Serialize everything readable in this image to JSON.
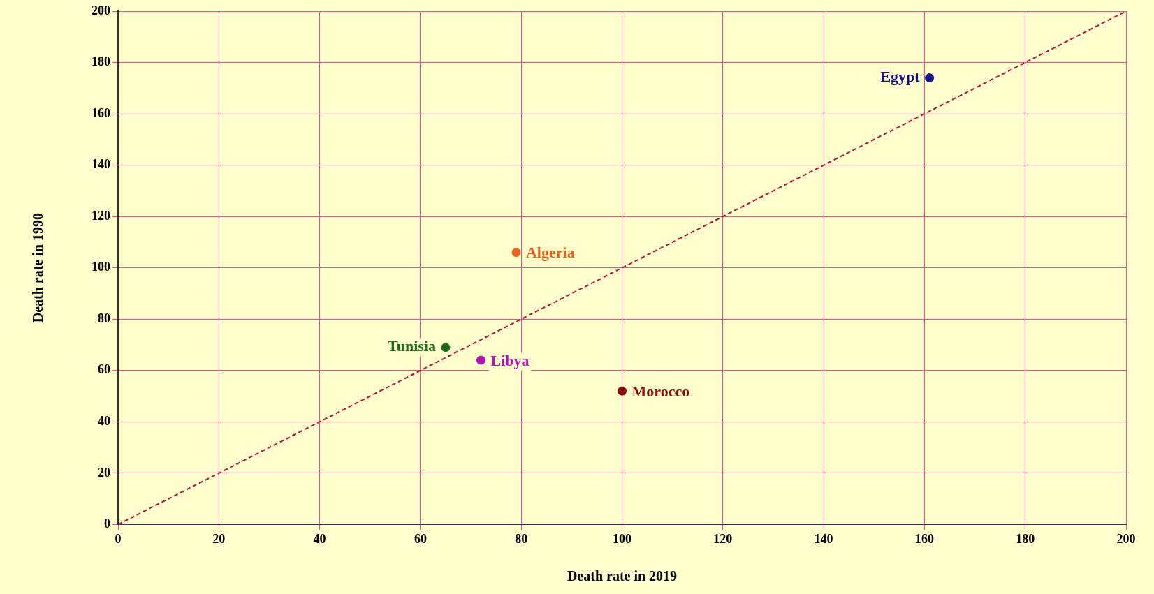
{
  "chart_data": {
    "type": "scatter",
    "xlabel": "Death rate in 2019",
    "ylabel": "Death rate in 1990",
    "xlim": [
      0,
      200
    ],
    "ylim": [
      0,
      200
    ],
    "xticks": [
      0,
      20,
      40,
      60,
      80,
      100,
      120,
      140,
      160,
      180,
      200
    ],
    "yticks": [
      0,
      20,
      40,
      60,
      80,
      100,
      120,
      140,
      160,
      180,
      200
    ],
    "grid": true,
    "legend": false,
    "marker": "circle",
    "series": [
      {
        "name": "Egypt",
        "color": "#14148c",
        "x": [
          161
        ],
        "values": [
          174
        ]
      },
      {
        "name": "Algeria",
        "color": "#e8641e",
        "x": [
          79
        ],
        "values": [
          106
        ]
      },
      {
        "name": "Tunisia",
        "color": "#1e6e1e",
        "x": [
          65
        ],
        "values": [
          69
        ]
      },
      {
        "name": "Libya",
        "color": "#b414b4",
        "x": [
          72
        ],
        "values": [
          64
        ]
      },
      {
        "name": "Morocco",
        "color": "#8c0a0a",
        "x": [
          100
        ],
        "values": [
          52
        ]
      },
      {
        "type": "line",
        "color": "#b4143c",
        "line_style": "dashed",
        "marker": "none",
        "x": [
          0,
          200
        ],
        "values": [
          0,
          200
        ]
      }
    ]
  }
}
